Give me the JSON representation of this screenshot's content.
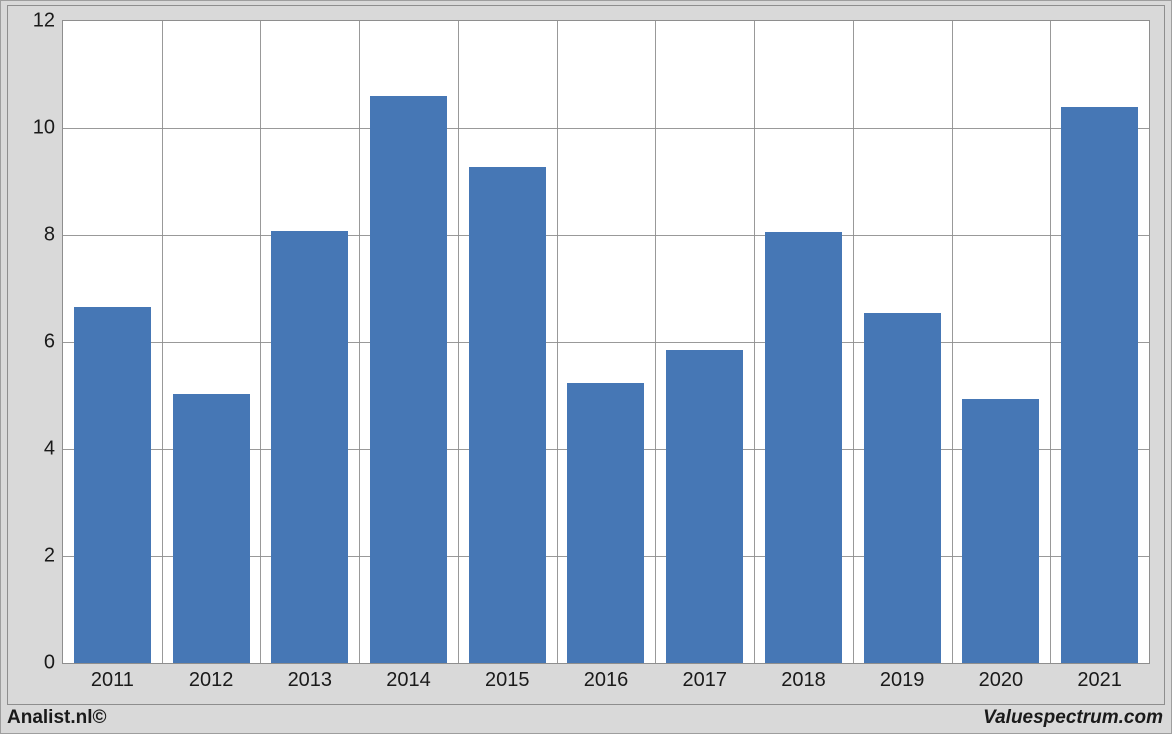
{
  "chart": {
    "type": "bar",
    "categories": [
      "2011",
      "2012",
      "2013",
      "2014",
      "2015",
      "2016",
      "2017",
      "2018",
      "2019",
      "2020",
      "2021"
    ],
    "values": [
      6.65,
      5.02,
      8.08,
      10.6,
      9.27,
      5.23,
      5.85,
      8.06,
      6.55,
      4.94,
      10.4
    ],
    "bar_color": "#4677b5",
    "background_color": "#d9d9d9",
    "plot_bg_color": "#ffffff",
    "grid_color": "#8e8e8e",
    "text_color": "#1a1a1a",
    "ylim": [
      0,
      12
    ],
    "ytick_step": 2,
    "yticks": [
      0,
      2,
      4,
      6,
      8,
      10,
      12
    ],
    "axis_fontsize": 20,
    "bar_width_ratio": 0.78
  },
  "footer": {
    "left": "Analist.nl©",
    "right": "Valuespectrum.com"
  }
}
